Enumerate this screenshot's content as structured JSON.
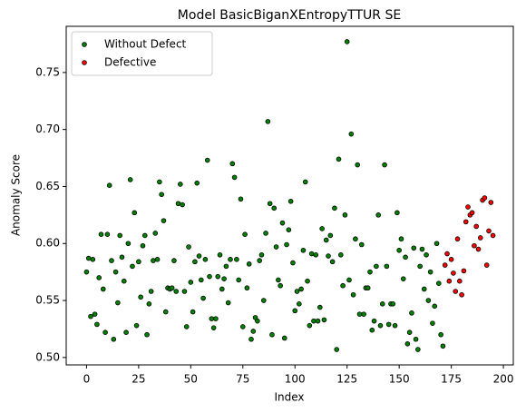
{
  "chart_data": {
    "type": "scatter",
    "title": "Model BasicBiganXEntropyTTUR SE",
    "x_label": "Index",
    "y_label": "Anomaly Score",
    "xlim": [
      -9.75,
      204.75
    ],
    "ylim": [
      0.4935,
      0.7905
    ],
    "xticks": [
      0,
      25,
      50,
      75,
      100,
      125,
      150,
      175,
      200
    ],
    "yticks": [
      {
        "value": 0.5,
        "label": "0.50"
      },
      0.55,
      {
        "value": 0.6,
        "label": "0.60"
      },
      0.65,
      {
        "value": 0.7,
        "label": "0.70"
      },
      0.75
    ],
    "legend": "upper left",
    "series": [
      {
        "name": "Without Defect",
        "color": "green",
        "x": [
          0,
          1,
          2,
          3,
          4,
          5,
          6,
          7,
          8,
          9,
          10,
          11,
          12,
          13,
          14,
          15,
          16,
          17,
          18,
          19,
          20,
          21,
          22,
          23,
          24,
          25,
          26,
          27,
          28,
          29,
          30,
          31,
          32,
          33,
          34,
          35,
          36,
          37,
          38,
          39,
          40,
          41,
          42,
          43,
          44,
          45,
          46,
          47,
          48,
          49,
          50,
          51,
          52,
          53,
          54,
          55,
          56,
          57,
          58,
          59,
          60,
          61,
          62,
          63,
          64,
          65,
          66,
          67,
          68,
          69,
          70,
          71,
          72,
          73,
          74,
          75,
          76,
          77,
          78,
          79,
          80,
          81,
          82,
          83,
          84,
          85,
          86,
          87,
          88,
          89,
          90,
          91,
          92,
          93,
          94,
          95,
          96,
          97,
          98,
          99,
          100,
          101,
          102,
          103,
          104,
          105,
          106,
          107,
          108,
          109,
          110,
          111,
          112,
          113,
          114,
          115,
          116,
          117,
          118,
          119,
          120,
          121,
          122,
          123,
          124,
          125,
          126,
          127,
          128,
          129,
          130,
          131,
          132,
          133,
          134,
          135,
          136,
          137,
          138,
          139,
          140,
          141,
          142,
          143,
          144,
          145,
          146,
          147,
          148,
          149,
          150,
          151,
          152,
          153,
          154,
          155,
          156,
          157,
          158,
          159,
          160,
          161,
          162,
          163,
          164,
          165,
          166,
          167,
          168,
          169,
          170,
          171
        ],
        "values": [
          0.575,
          0.587,
          0.536,
          0.586,
          0.538,
          0.529,
          0.57,
          0.608,
          0.56,
          0.522,
          0.608,
          0.651,
          0.585,
          0.516,
          0.575,
          0.548,
          0.607,
          0.588,
          0.567,
          0.522,
          0.6,
          0.656,
          0.58,
          0.627,
          0.528,
          0.584,
          0.553,
          0.598,
          0.607,
          0.52,
          0.547,
          0.558,
          0.585,
          0.609,
          0.586,
          0.654,
          0.643,
          0.62,
          0.54,
          0.561,
          0.56,
          0.561,
          0.585,
          0.558,
          0.635,
          0.652,
          0.634,
          0.558,
          0.527,
          0.597,
          0.566,
          0.54,
          0.584,
          0.653,
          0.589,
          0.568,
          0.552,
          0.586,
          0.673,
          0.571,
          0.534,
          0.526,
          0.534,
          0.571,
          0.59,
          0.56,
          0.569,
          0.58,
          0.548,
          0.586,
          0.67,
          0.658,
          0.586,
          0.568,
          0.639,
          0.527,
          0.608,
          0.561,
          0.582,
          0.516,
          0.523,
          0.535,
          0.532,
          0.585,
          0.59,
          0.55,
          0.609,
          0.707,
          0.635,
          0.52,
          0.631,
          0.597,
          0.568,
          0.563,
          0.618,
          0.517,
          0.599,
          0.612,
          0.637,
          0.583,
          0.541,
          0.558,
          0.547,
          0.56,
          0.594,
          0.654,
          0.567,
          0.528,
          0.591,
          0.532,
          0.59,
          0.532,
          0.544,
          0.613,
          0.533,
          0.603,
          0.589,
          0.607,
          0.584,
          0.631,
          0.507,
          0.674,
          0.59,
          0.563,
          0.625,
          0.777,
          0.568,
          0.696,
          0.555,
          0.604,
          0.669,
          0.538,
          0.599,
          0.538,
          0.561,
          0.561,
          0.575,
          0.524,
          0.532,
          0.58,
          0.625,
          0.528,
          0.547,
          0.669,
          0.58,
          0.529,
          0.547,
          0.547,
          0.528,
          0.627,
          0.594,
          0.604,
          0.569,
          0.588,
          0.512,
          0.522,
          0.539,
          0.596,
          0.516,
          0.507,
          0.58,
          0.595,
          0.56,
          0.59,
          0.55,
          0.575,
          0.53,
          0.545,
          0.6,
          0.565,
          0.52,
          0.51
        ]
      },
      {
        "name": "Defective",
        "color": "red",
        "x": [
          172,
          173,
          174,
          175,
          176,
          177,
          178,
          179,
          180,
          181,
          182,
          183,
          184,
          185,
          186,
          187,
          188,
          189,
          190,
          191,
          192,
          193,
          194,
          195
        ],
        "values": [
          0.581,
          0.591,
          0.567,
          0.586,
          0.574,
          0.558,
          0.604,
          0.567,
          0.555,
          0.576,
          0.619,
          0.632,
          0.625,
          0.627,
          0.598,
          0.615,
          0.595,
          0.605,
          0.638,
          0.64,
          0.581,
          0.611,
          0.636,
          0.607
        ]
      }
    ]
  }
}
